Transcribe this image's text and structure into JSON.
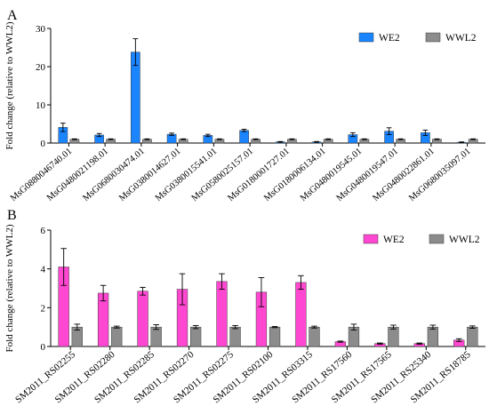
{
  "chart_data": [
    {
      "type": "bar",
      "panel_label": "A",
      "ylabel": "Fold change (relative to WWL2)",
      "xlabel": "",
      "ylim": [
        0,
        30
      ],
      "yticks": [
        0,
        10,
        20,
        30
      ],
      "legend_position": "top-right",
      "grid": false,
      "categories": [
        "MsG0880046740.01",
        "MsG0480021198.01",
        "MsG0680030474.01",
        "MsG0380014627.01",
        "MsG0380015541.01",
        "MsG0580025157.01",
        "MsG0180001727.01",
        "MsG0180006134.01",
        "MsG0480019545.01",
        "MsG0480019547.01",
        "MsG0480022861.01",
        "MsG0680035097.01"
      ],
      "series": [
        {
          "name": "WE2",
          "color": "#1a85ff",
          "values": [
            4.1,
            2.1,
            23.8,
            2.3,
            2.0,
            3.3,
            0.3,
            0.3,
            2.2,
            3.1,
            2.7,
            0.2
          ],
          "errors": [
            1.1,
            0.4,
            3.5,
            0.3,
            0.3,
            0.3,
            0.1,
            0.1,
            0.5,
            0.9,
            0.7,
            0.1
          ]
        },
        {
          "name": "WWL2",
          "color": "#8c8c8c",
          "values": [
            1.0,
            1.0,
            1.0,
            1.0,
            1.0,
            1.0,
            1.0,
            1.0,
            1.0,
            1.0,
            1.0,
            1.0
          ],
          "errors": [
            0.1,
            0.1,
            0.1,
            0.1,
            0.1,
            0.1,
            0.1,
            0.1,
            0.1,
            0.1,
            0.1,
            0.1
          ]
        }
      ]
    },
    {
      "type": "bar",
      "panel_label": "B",
      "ylabel": "Fold change (relative to WWL2)",
      "xlabel": "",
      "ylim": [
        0,
        6
      ],
      "yticks": [
        0,
        2,
        4,
        6
      ],
      "legend_position": "top-right",
      "grid": false,
      "categories": [
        "SM2011_RS02255",
        "SM2011_RS02280",
        "SM2011_RS02285",
        "SM2011_RS02270",
        "SM2011_RS02275",
        "SM2011_RS02100",
        "SM2011_RS03315",
        "SM2011_RS17560",
        "SM2011_RS17565",
        "SM2011_RS25340",
        "SM2011_RS18785"
      ],
      "series": [
        {
          "name": "WE2",
          "color": "#ff47d1",
          "values": [
            4.1,
            2.75,
            2.85,
            2.95,
            3.35,
            2.8,
            3.3,
            0.25,
            0.15,
            0.15,
            0.33
          ],
          "errors": [
            0.95,
            0.4,
            0.2,
            0.8,
            0.4,
            0.75,
            0.35,
            0.03,
            0.03,
            0.03,
            0.07
          ]
        },
        {
          "name": "WWL2",
          "color": "#8c8c8c",
          "values": [
            1.0,
            1.0,
            1.0,
            1.0,
            1.0,
            1.0,
            1.0,
            1.0,
            1.0,
            1.0,
            1.0
          ],
          "errors": [
            0.15,
            0.05,
            0.12,
            0.08,
            0.08,
            0.03,
            0.05,
            0.15,
            0.1,
            0.1,
            0.06
          ]
        }
      ]
    }
  ]
}
